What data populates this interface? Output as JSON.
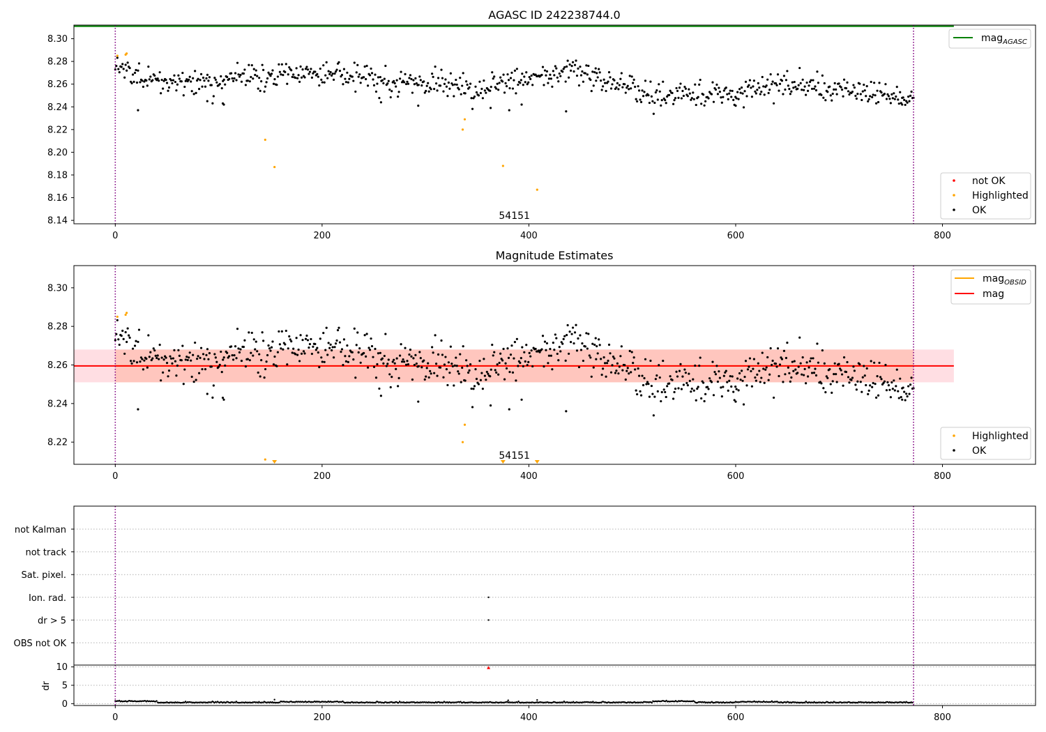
{
  "figure": {
    "title": "AGASC ID 242238744.0",
    "obsid_label": "54151"
  },
  "colors": {
    "ok": "#000000",
    "highlighted": "#ffa500",
    "not_ok": "#ff0000",
    "mag_agasc": "#008000",
    "mag": "#ff0000",
    "mag_obsid": "#ffa500",
    "band_fill": "#ff7f50",
    "band_outer": "#ffb6c1",
    "obs_bounds": "#800080"
  },
  "chart_data": [
    {
      "type": "scatter",
      "panel": "top",
      "title": "AGASC ID 242238744.0",
      "xlim": [
        -40,
        890
      ],
      "ylim": [
        8.137,
        8.312
      ],
      "xticks": [
        0,
        200,
        400,
        600,
        800
      ],
      "yticks": [
        8.14,
        8.16,
        8.18,
        8.2,
        8.22,
        8.24,
        8.26,
        8.28,
        8.3
      ],
      "observation_bounds": [
        0,
        772
      ],
      "annotation": {
        "text": "54151",
        "x": 386,
        "y": 8.14
      },
      "lines": [
        {
          "name": "mag_AGASC",
          "y": 8.311,
          "x": [
            -40,
            811
          ]
        }
      ],
      "legend_upper": {
        "position": "upper right",
        "entries": [
          {
            "label": "mag",
            "sub": "AGASC",
            "marker": "line"
          }
        ]
      },
      "legend_lower": {
        "position": "lower right",
        "entries": [
          {
            "label": "not OK",
            "marker": "dot"
          },
          {
            "label": "Highlighted",
            "marker": "dot"
          },
          {
            "label": "OK",
            "marker": "dot"
          }
        ]
      },
      "series": [
        {
          "name": "Highlighted",
          "points": [
            [
              2,
              8.285
            ],
            [
              10,
              8.286
            ],
            [
              11,
              8.287
            ],
            [
              145,
              8.211
            ],
            [
              154,
              8.187
            ],
            [
              336,
              8.22
            ],
            [
              338,
              8.229
            ],
            [
              375,
              8.188
            ],
            [
              408,
              8.167
            ]
          ]
        },
        {
          "name": "OK",
          "generator": {
            "n": 772,
            "x_start": 0,
            "x_end": 772,
            "seed": 242238744,
            "trend": [
              [
                0,
                8.279
              ],
              [
                12,
                8.273
              ],
              [
                40,
                8.262
              ],
              [
                100,
                8.262
              ],
              [
                130,
                8.268
              ],
              [
                200,
                8.27
              ],
              [
                260,
                8.262
              ],
              [
                330,
                8.26
              ],
              [
                350,
                8.253
              ],
              [
                370,
                8.262
              ],
              [
                440,
                8.27
              ],
              [
                480,
                8.262
              ],
              [
                520,
                8.25
              ],
              [
                600,
                8.253
              ],
              [
                640,
                8.26
              ],
              [
                700,
                8.255
              ],
              [
                772,
                8.248
              ]
            ],
            "noise": 0.006,
            "outliers": [
              [
                22,
                8.237
              ],
              [
                89,
                8.245
              ],
              [
                104,
                8.243
              ],
              [
                105,
                8.242
              ],
              [
                257,
                8.244
              ],
              [
                293,
                8.241
              ],
              [
                363,
                8.239
              ],
              [
                381,
                8.237
              ],
              [
                393,
                8.242
              ],
              [
                436,
                8.236
              ],
              [
                465,
                8.263
              ],
              [
                600,
                8.241
              ],
              [
                761,
                8.242
              ]
            ]
          }
        }
      ]
    },
    {
      "type": "scatter",
      "panel": "middle",
      "title": "Magnitude Estimates",
      "xlim": [
        -40,
        890
      ],
      "ylim": [
        8.2085,
        8.3115
      ],
      "xticks": [
        0,
        200,
        400,
        600,
        800
      ],
      "yticks": [
        8.22,
        8.24,
        8.26,
        8.28,
        8.3
      ],
      "observation_bounds": [
        0,
        772
      ],
      "annotation": {
        "text": "54151",
        "x": 386,
        "y": 8.211
      },
      "lines": [
        {
          "name": "mag",
          "y": 8.2595,
          "x": [
            -40,
            811
          ]
        },
        {
          "name": "mag_OBSID",
          "y": 8.2595,
          "x": [
            0,
            772
          ]
        }
      ],
      "bands": [
        {
          "name": "mag_OBSID_range",
          "y": [
            8.251,
            8.268
          ],
          "x": [
            0,
            772
          ]
        },
        {
          "name": "mag_range",
          "y": [
            8.251,
            8.268
          ],
          "x": [
            -40,
            811
          ]
        }
      ],
      "offscale_markers": [
        [
          154,
          8.2085
        ],
        [
          375,
          8.2085
        ],
        [
          408,
          8.2085
        ]
      ],
      "legend_upper": {
        "position": "upper right",
        "entries": [
          {
            "label": "mag",
            "sub": "OBSID",
            "marker": "line"
          },
          {
            "label": "mag",
            "marker": "line"
          }
        ]
      },
      "legend_lower": {
        "position": "lower right",
        "entries": [
          {
            "label": "Highlighted",
            "marker": "dot"
          },
          {
            "label": "OK",
            "marker": "dot"
          }
        ]
      },
      "series": [
        {
          "name": "Highlighted",
          "points": [
            [
              2,
              8.285
            ],
            [
              10,
              8.286
            ],
            [
              11,
              8.287
            ],
            [
              145,
              8.211
            ],
            [
              336,
              8.22
            ],
            [
              338,
              8.229
            ]
          ]
        },
        {
          "name": "OK",
          "same_as": "top"
        }
      ]
    },
    {
      "type": "scatter",
      "panel": "flags",
      "xlim": [
        -40,
        890
      ],
      "categories": [
        "not Kalman",
        "not track",
        "Sat. pixel.",
        "Ion. rad.",
        "dr > 5",
        "OBS not OK"
      ],
      "observation_bounds": [
        0,
        772
      ],
      "points": [
        {
          "category": "Ion. rad.",
          "x": 361
        },
        {
          "category": "dr > 5",
          "x": 361
        }
      ]
    },
    {
      "type": "scatter",
      "panel": "dr",
      "ylabel": "dr",
      "xlim": [
        -40,
        890
      ],
      "ylim": [
        -0.5,
        10.5
      ],
      "xticks": [
        0,
        200,
        400,
        600,
        800
      ],
      "yticks": [
        0,
        5,
        10
      ],
      "observation_bounds": [
        0,
        772
      ],
      "series": [
        {
          "name": "dr",
          "generator": {
            "n": 772,
            "base": 0.25,
            "noise": 0.2,
            "seed": 7,
            "spikes": [
              [
                154,
                1.1
              ],
              [
                408,
                1.0
              ],
              [
                380,
                0.9
              ]
            ],
            "bumps": [
              [
                0,
                40,
                0.3
              ],
              [
                160,
                220,
                0.15
              ],
              [
                520,
                560,
                0.3
              ],
              [
                600,
                640,
                0.15
              ]
            ]
          }
        },
        {
          "name": "not OK",
          "points": [
            [
              361,
              9.8
            ]
          ]
        }
      ]
    }
  ]
}
